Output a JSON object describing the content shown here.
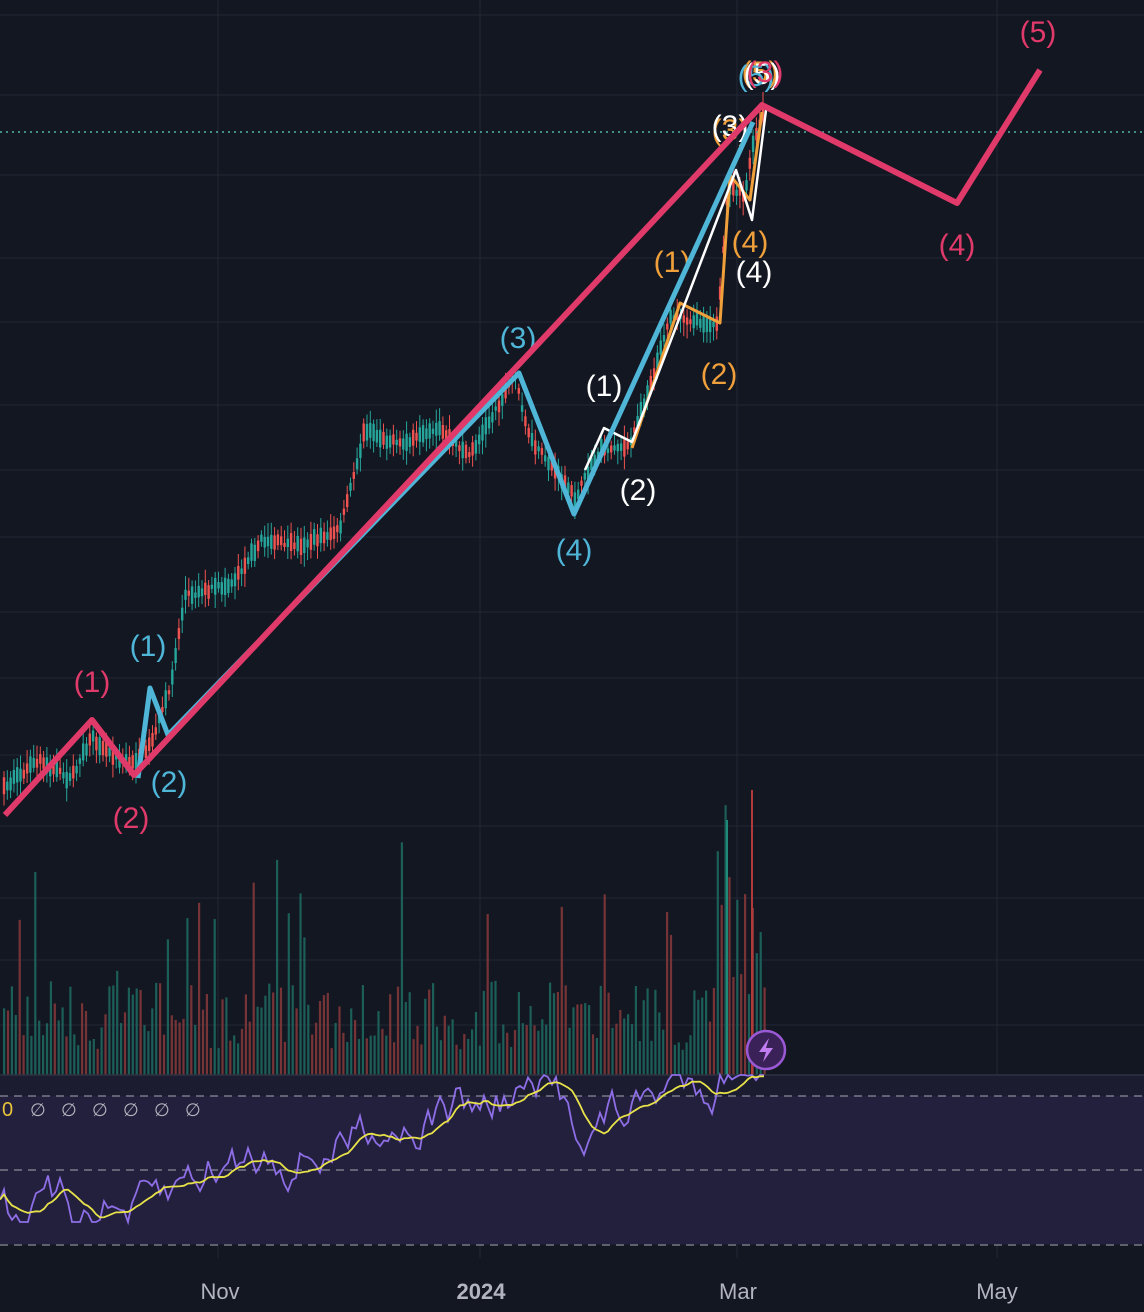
{
  "chart_data": {
    "type": "line",
    "description_units": "price chart with Elliott wave annotations, volume histogram and RSI panel",
    "x_ticks": [
      "Nov",
      "2024",
      "Mar",
      "May"
    ],
    "colors": {
      "background": "#131722",
      "grid": "#232735",
      "primary_wave": "#e03a6a",
      "intermediate_wave": "#4fb6d8",
      "minor_wave": "#ffffff",
      "minute_wave": "#f0a03a",
      "candle_up": "#26a69a",
      "candle_down": "#ef5350",
      "rsi": "#8e6ee6",
      "rsi_ma": "#e8e24a",
      "last_price_line": "#4fb6a8"
    },
    "wave_primary": {
      "name": "primary",
      "labels": [
        "(1)",
        "(2)",
        "(3)",
        "(4)",
        "(5)"
      ],
      "label_above": [
        true,
        false,
        true,
        false,
        true
      ]
    },
    "wave_intermediate": {
      "name": "intermediate",
      "labels": [
        "(1)",
        "(2)",
        "(3)",
        "(4)",
        "(5)"
      ]
    },
    "wave_minor": {
      "name": "minor",
      "labels": [
        "(1)",
        "(2)",
        "(3)",
        "(4)",
        "(5)"
      ]
    },
    "wave_minute": {
      "name": "minute",
      "labels": [
        "(1)",
        "(2)",
        "(3)",
        "(4)",
        "(5)"
      ]
    },
    "rsi_panel": {
      "leading_value": "0",
      "na_markers": [
        "∅",
        "∅",
        "∅",
        "∅",
        "∅",
        "∅"
      ]
    },
    "icons": [
      "lightning-icon"
    ]
  }
}
